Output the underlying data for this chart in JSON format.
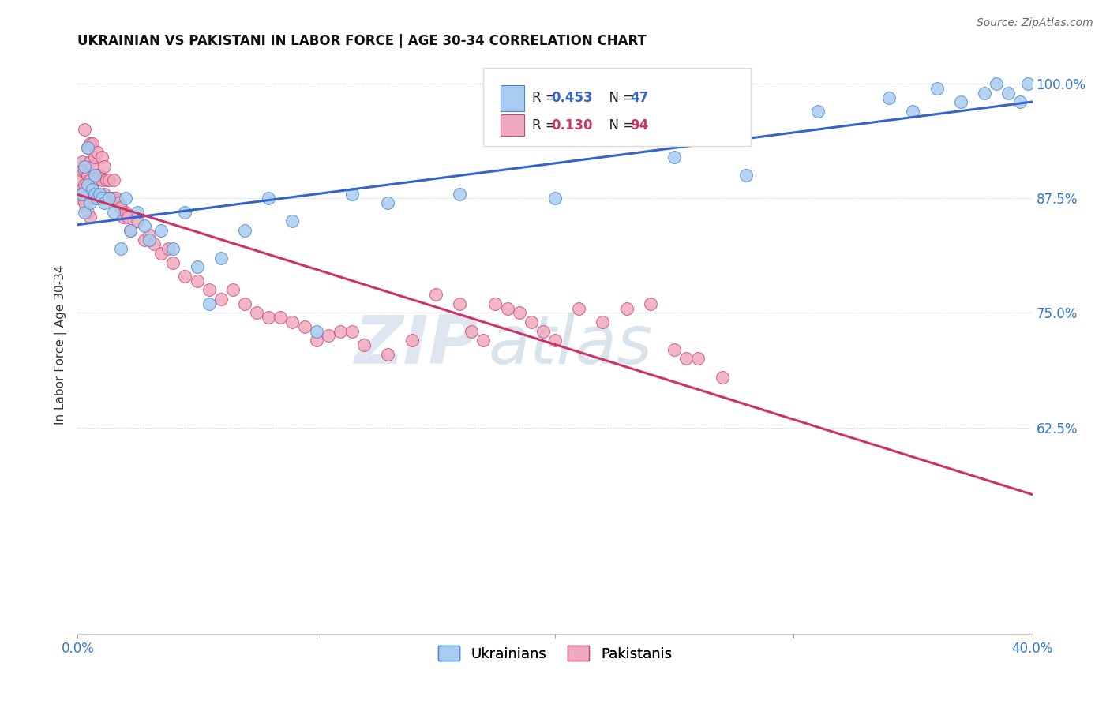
{
  "title": "UKRAINIAN VS PAKISTANI IN LABOR FORCE | AGE 30-34 CORRELATION CHART",
  "source_text": "Source: ZipAtlas.com",
  "ylabel": "In Labor Force | Age 30-34",
  "xlim": [
    0.0,
    0.4
  ],
  "ylim": [
    0.4,
    1.03
  ],
  "yticks": [
    0.625,
    0.75,
    0.875,
    1.0
  ],
  "ytick_labels": [
    "62.5%",
    "75.0%",
    "87.5%",
    "100.0%"
  ],
  "xticks": [
    0.0,
    0.1,
    0.2,
    0.3,
    0.4
  ],
  "xtick_labels": [
    "0.0%",
    "",
    "",
    "",
    "40.0%"
  ],
  "r_ukrainian": 0.453,
  "n_ukrainian": 47,
  "r_pakistani": 0.13,
  "n_pakistani": 94,
  "ukr_color": "#aaccf0",
  "pak_color": "#f0aabe",
  "ukr_edge_color": "#4488cc",
  "pak_edge_color": "#cc4477",
  "ukr_line_color": "#3366cc",
  "pak_line_color": "#cc3366",
  "background_color": "#ffffff",
  "watermark_zip": "ZIP",
  "watermark_atlas": "atlas",
  "ukrainians_x": [
    0.002,
    0.003,
    0.003,
    0.004,
    0.004,
    0.005,
    0.006,
    0.007,
    0.007,
    0.008,
    0.009,
    0.01,
    0.011,
    0.013,
    0.015,
    0.018,
    0.02,
    0.022,
    0.025,
    0.028,
    0.03,
    0.035,
    0.04,
    0.045,
    0.05,
    0.055,
    0.06,
    0.07,
    0.08,
    0.09,
    0.1,
    0.115,
    0.13,
    0.16,
    0.2,
    0.25,
    0.28,
    0.31,
    0.34,
    0.35,
    0.36,
    0.37,
    0.38,
    0.385,
    0.39,
    0.395,
    0.398
  ],
  "ukrainians_y": [
    0.88,
    0.91,
    0.86,
    0.89,
    0.93,
    0.87,
    0.885,
    0.88,
    0.9,
    0.875,
    0.88,
    0.875,
    0.87,
    0.875,
    0.86,
    0.82,
    0.875,
    0.84,
    0.86,
    0.845,
    0.83,
    0.84,
    0.82,
    0.86,
    0.8,
    0.76,
    0.81,
    0.84,
    0.875,
    0.85,
    0.73,
    0.88,
    0.87,
    0.88,
    0.875,
    0.92,
    0.9,
    0.97,
    0.985,
    0.97,
    0.995,
    0.98,
    0.99,
    1.0,
    0.99,
    0.98,
    1.0
  ],
  "pakistanis_x": [
    0.001,
    0.001,
    0.002,
    0.002,
    0.002,
    0.003,
    0.003,
    0.003,
    0.003,
    0.004,
    0.004,
    0.004,
    0.005,
    0.005,
    0.005,
    0.005,
    0.006,
    0.006,
    0.006,
    0.006,
    0.007,
    0.007,
    0.007,
    0.008,
    0.008,
    0.008,
    0.009,
    0.009,
    0.01,
    0.01,
    0.01,
    0.011,
    0.011,
    0.012,
    0.012,
    0.013,
    0.013,
    0.014,
    0.015,
    0.015,
    0.016,
    0.017,
    0.018,
    0.019,
    0.02,
    0.021,
    0.022,
    0.025,
    0.028,
    0.03,
    0.032,
    0.035,
    0.038,
    0.04,
    0.045,
    0.05,
    0.055,
    0.06,
    0.065,
    0.07,
    0.075,
    0.08,
    0.085,
    0.09,
    0.095,
    0.1,
    0.105,
    0.11,
    0.115,
    0.12,
    0.13,
    0.14,
    0.15,
    0.16,
    0.165,
    0.17,
    0.175,
    0.18,
    0.185,
    0.19,
    0.195,
    0.2,
    0.21,
    0.22,
    0.23,
    0.24,
    0.25,
    0.255,
    0.26,
    0.27,
    0.002,
    0.003,
    0.004,
    0.005
  ],
  "pakistanis_y": [
    0.875,
    0.895,
    0.885,
    0.905,
    0.915,
    0.875,
    0.89,
    0.905,
    0.95,
    0.88,
    0.9,
    0.93,
    0.875,
    0.895,
    0.915,
    0.935,
    0.875,
    0.89,
    0.91,
    0.935,
    0.875,
    0.895,
    0.92,
    0.875,
    0.9,
    0.925,
    0.875,
    0.9,
    0.875,
    0.895,
    0.92,
    0.88,
    0.91,
    0.875,
    0.895,
    0.875,
    0.895,
    0.875,
    0.875,
    0.895,
    0.875,
    0.87,
    0.865,
    0.855,
    0.86,
    0.855,
    0.84,
    0.85,
    0.83,
    0.835,
    0.825,
    0.815,
    0.82,
    0.805,
    0.79,
    0.785,
    0.775,
    0.765,
    0.775,
    0.76,
    0.75,
    0.745,
    0.745,
    0.74,
    0.735,
    0.72,
    0.725,
    0.73,
    0.73,
    0.715,
    0.705,
    0.72,
    0.77,
    0.76,
    0.73,
    0.72,
    0.76,
    0.755,
    0.75,
    0.74,
    0.73,
    0.72,
    0.755,
    0.74,
    0.755,
    0.76,
    0.71,
    0.7,
    0.7,
    0.68,
    0.88,
    0.87,
    0.86,
    0.855
  ]
}
